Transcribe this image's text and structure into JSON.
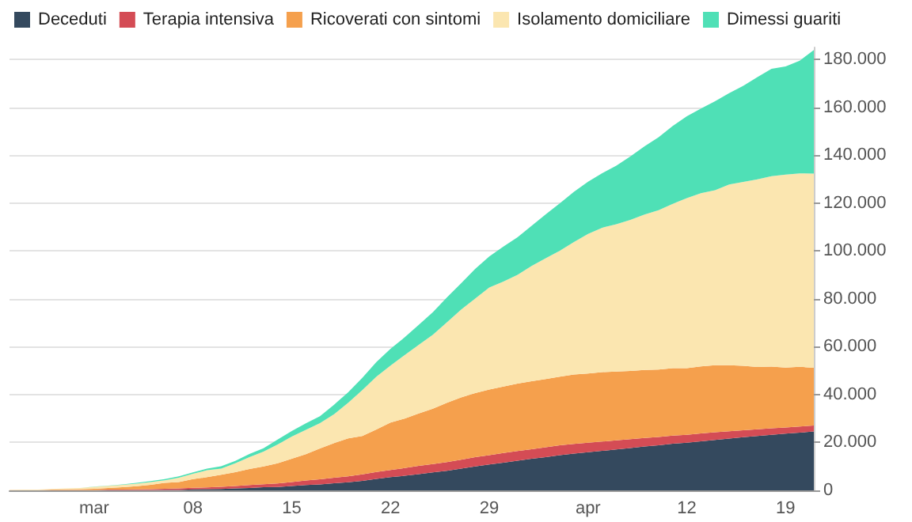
{
  "chart_data": {
    "type": "area",
    "stacked": true,
    "legend": "top left",
    "grid": "y",
    "marker": "none",
    "categories": [
      null,
      null,
      null,
      null,
      null,
      null,
      "mar",
      null,
      null,
      null,
      null,
      null,
      null,
      "08",
      null,
      null,
      null,
      null,
      null,
      null,
      "15",
      null,
      null,
      null,
      null,
      null,
      null,
      "22",
      null,
      null,
      null,
      null,
      null,
      null,
      "29",
      null,
      null,
      null,
      null,
      null,
      null,
      "apr",
      null,
      null,
      null,
      null,
      null,
      null,
      "12",
      null,
      null,
      null,
      null,
      null,
      null,
      "19",
      null,
      null
    ],
    "ylim": [
      0,
      185000
    ],
    "yticks": [
      {
        "value": 0,
        "label": "0"
      },
      {
        "value": 20000,
        "label": "20.000"
      },
      {
        "value": 40000,
        "label": "40.000"
      },
      {
        "value": 60000,
        "label": "60.000"
      },
      {
        "value": 80000,
        "label": "80.000"
      },
      {
        "value": 100000,
        "label": "100.000"
      },
      {
        "value": 120000,
        "label": "120.000"
      },
      {
        "value": 140000,
        "label": "140.000"
      },
      {
        "value": 160000,
        "label": "160.000"
      },
      {
        "value": 180000,
        "label": "180.000"
      }
    ],
    "series": [
      {
        "name": "Deceduti",
        "color": "#34495e",
        "values": [
          0,
          0,
          0,
          0,
          0,
          0,
          0,
          100,
          100,
          100,
          100,
          200,
          200,
          400,
          500,
          600,
          800,
          1000,
          1300,
          1400,
          1800,
          2200,
          2500,
          3000,
          3400,
          4000,
          4800,
          5500,
          6100,
          6800,
          7500,
          8200,
          9100,
          10000,
          10800,
          11600,
          12400,
          13200,
          13900,
          14700,
          15400,
          15900,
          16500,
          17100,
          17700,
          18300,
          18800,
          19500,
          19900,
          20500,
          21100,
          21600,
          22200,
          22700,
          23200,
          23700,
          24100,
          24600
        ]
      },
      {
        "name": "Terapia intensiva",
        "color": "#d44c55",
        "values": [
          0,
          0,
          0,
          100,
          100,
          100,
          100,
          200,
          200,
          300,
          400,
          500,
          600,
          700,
          700,
          900,
          1000,
          1200,
          1300,
          1500,
          1700,
          1900,
          2100,
          2300,
          2500,
          2700,
          2900,
          3000,
          3200,
          3400,
          3500,
          3600,
          3700,
          3900,
          3900,
          4000,
          4000,
          4000,
          4100,
          4100,
          4000,
          4000,
          3900,
          3800,
          3700,
          3600,
          3500,
          3400,
          3300,
          3300,
          3200,
          3100,
          2900,
          2800,
          2700,
          2600,
          2600,
          2500
        ]
      },
      {
        "name": "Ricoverati con sintomi",
        "color": "#f5a04d",
        "values": [
          100,
          100,
          100,
          200,
          300,
          400,
          600,
          700,
          1000,
          1300,
          1800,
          2400,
          2700,
          3600,
          4300,
          5000,
          5800,
          6700,
          7400,
          8400,
          9700,
          11000,
          12900,
          14400,
          15800,
          16000,
          17700,
          19800,
          20700,
          21900,
          23100,
          24800,
          26000,
          26700,
          27400,
          27800,
          28200,
          28400,
          28500,
          28700,
          29000,
          28900,
          29000,
          28700,
          28500,
          28400,
          28200,
          28100,
          27800,
          28000,
          28000,
          27600,
          26900,
          26000,
          25800,
          25000,
          24900,
          24100
        ]
      },
      {
        "name": "Isolamento domiciliare",
        "color": "#fbe6b0",
        "values": [
          100,
          200,
          200,
          300,
          400,
          500,
          800,
          900,
          1000,
          1100,
          1200,
          1100,
          1800,
          2200,
          2900,
          2600,
          3700,
          5000,
          6200,
          7900,
          9300,
          10200,
          10600,
          12100,
          14900,
          19200,
          22100,
          23800,
          26500,
          28700,
          30900,
          33600,
          36700,
          39500,
          42600,
          43800,
          45400,
          48100,
          50500,
          52600,
          55300,
          58300,
          60300,
          61600,
          63100,
          64900,
          66500,
          68700,
          71100,
          72300,
          73100,
          75500,
          76800,
          78400,
          79500,
          80600,
          80800,
          81100
        ]
      },
      {
        "name": "Dimessi guariti",
        "color": "#4fe0b6",
        "values": [
          0,
          0,
          0,
          0,
          0,
          0,
          100,
          100,
          200,
          300,
          400,
          500,
          600,
          600,
          700,
          1000,
          1000,
          1300,
          1400,
          2000,
          2300,
          2700,
          2900,
          4000,
          4400,
          5100,
          6100,
          7000,
          7400,
          8300,
          9400,
          10400,
          11000,
          12400,
          13000,
          14600,
          15700,
          16800,
          18300,
          19800,
          21000,
          21800,
          22800,
          24400,
          26500,
          28500,
          30500,
          32500,
          34200,
          35400,
          37100,
          38100,
          40200,
          42700,
          44900,
          45200,
          47100,
          51600
        ]
      }
    ]
  }
}
